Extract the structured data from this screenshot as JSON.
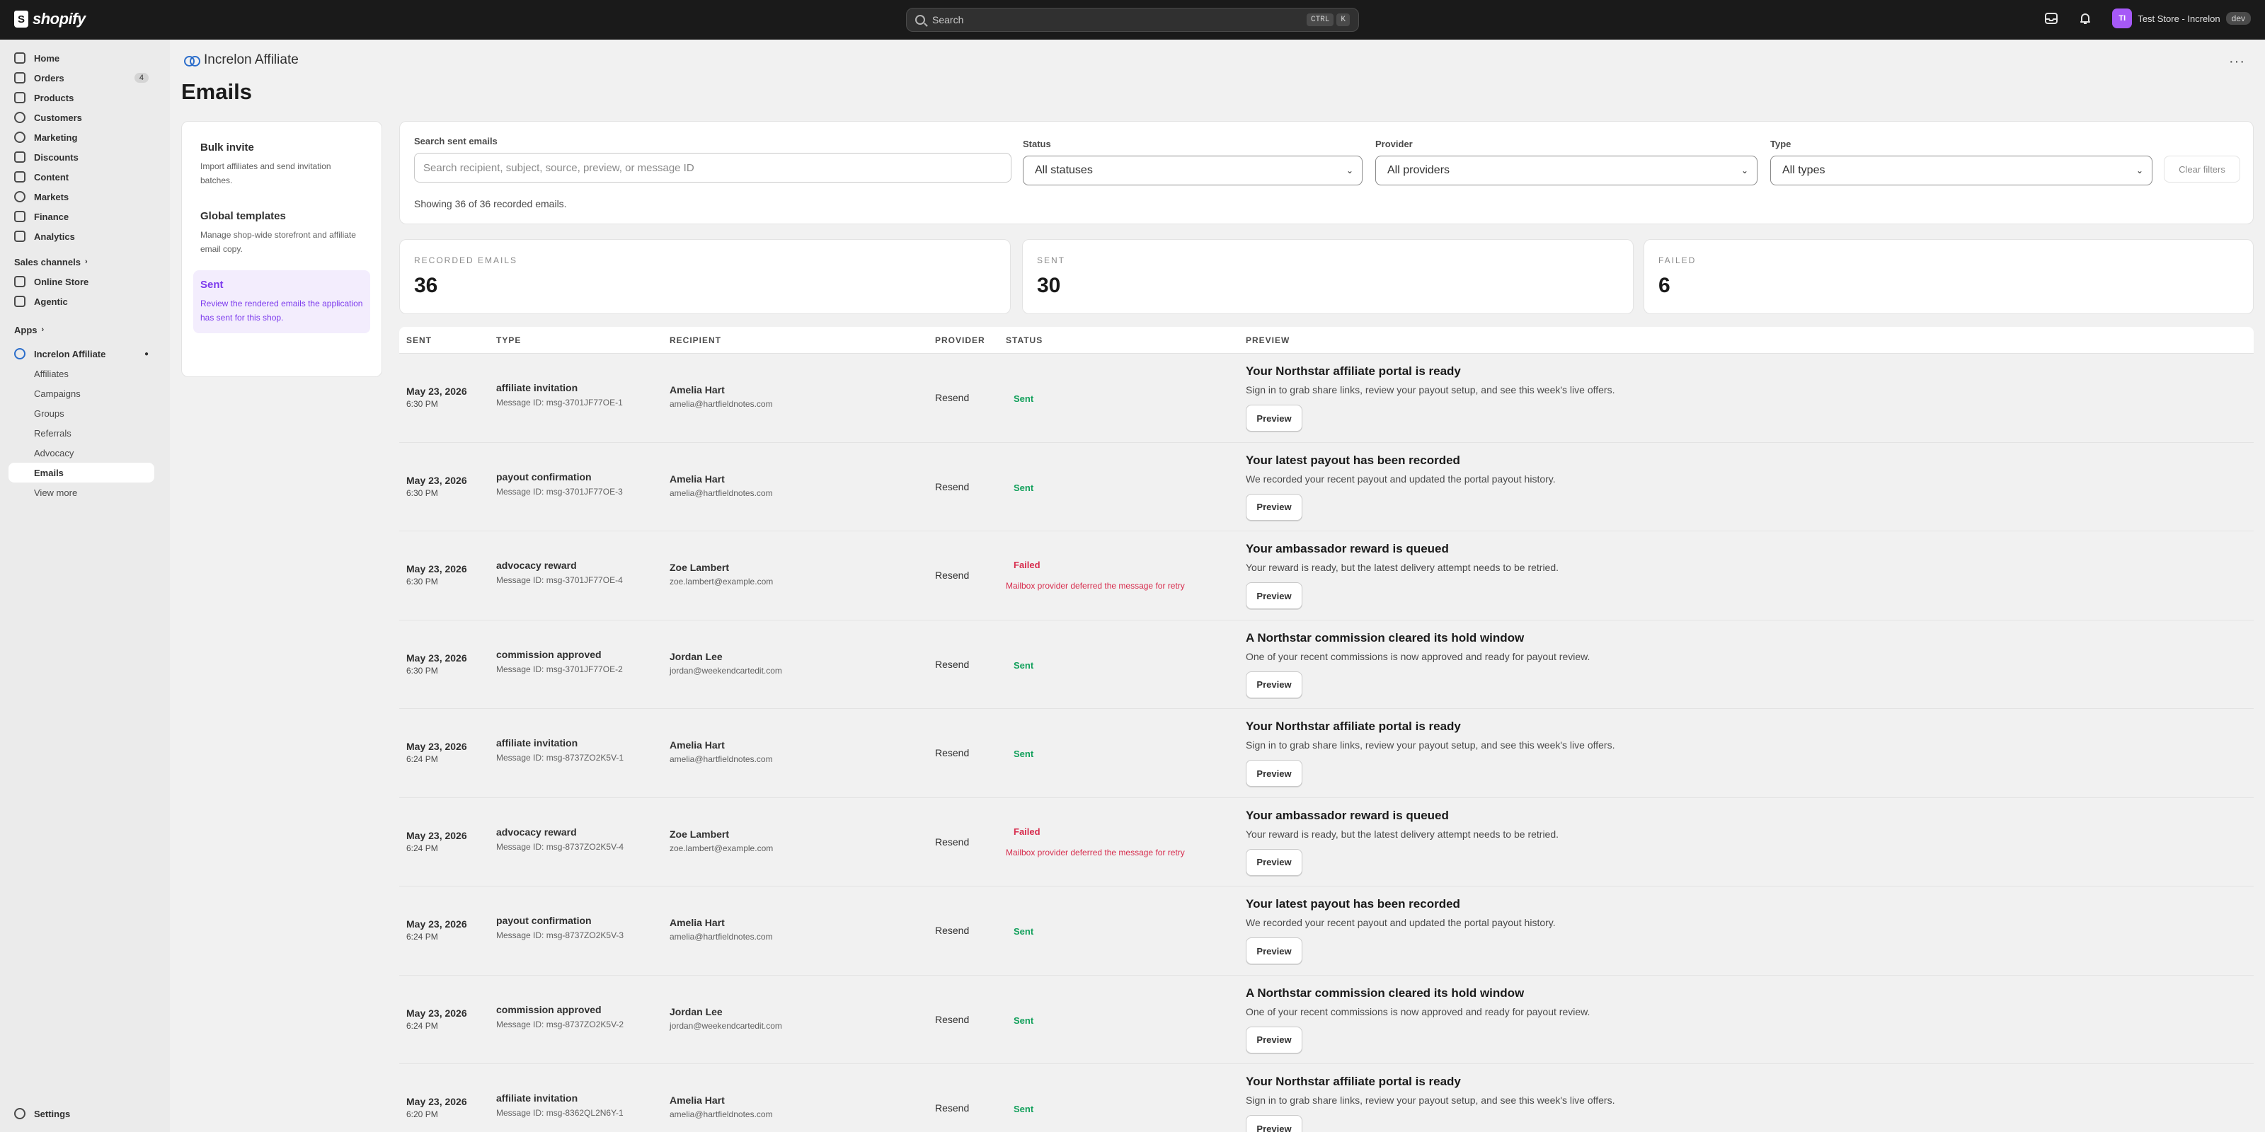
{
  "topbar": {
    "logo_text": "shopify",
    "search_placeholder": "Search",
    "search_kbd1": "CTRL",
    "search_kbd2": "K",
    "store_initials": "TI",
    "store_name": "Test Store - Increlon",
    "store_badge": "dev"
  },
  "sidebar": {
    "items": [
      {
        "label": "Home",
        "icon": "home-icon"
      },
      {
        "label": "Orders",
        "icon": "orders-icon",
        "badge": "4"
      },
      {
        "label": "Products",
        "icon": "products-icon"
      },
      {
        "label": "Customers",
        "icon": "customers-icon"
      },
      {
        "label": "Marketing",
        "icon": "marketing-icon"
      },
      {
        "label": "Discounts",
        "icon": "discounts-icon"
      },
      {
        "label": "Content",
        "icon": "content-icon"
      },
      {
        "label": "Markets",
        "icon": "markets-icon"
      },
      {
        "label": "Finance",
        "icon": "finance-icon"
      },
      {
        "label": "Analytics",
        "icon": "analytics-icon"
      }
    ],
    "sales_channels_label": "Sales channels",
    "sales_channels": [
      {
        "label": "Online Store"
      },
      {
        "label": "Agentic"
      }
    ],
    "apps_label": "Apps",
    "app_name": "Increlon Affiliate",
    "app_subitems": [
      "Affiliates",
      "Campaigns",
      "Groups",
      "Referrals",
      "Advocacy",
      "Emails",
      "View more"
    ],
    "active_subitem": "Emails",
    "settings_label": "Settings"
  },
  "header": {
    "breadcrumb": "Increlon Affiliate",
    "page_title": "Emails"
  },
  "left_menu": [
    {
      "title": "Bulk invite",
      "desc": "Import affiliates and send invitation batches."
    },
    {
      "title": "Global templates",
      "desc": "Manage shop-wide storefront and affiliate email copy."
    },
    {
      "title": "Sent",
      "desc": "Review the rendered emails the application has sent for this shop.",
      "active": true
    }
  ],
  "filters": {
    "search_label": "Search sent emails",
    "search_placeholder": "Search recipient, subject, source, preview, or message ID",
    "status_label": "Status",
    "status_value": "All statuses",
    "provider_label": "Provider",
    "provider_value": "All providers",
    "type_label": "Type",
    "type_value": "All types",
    "clear_label": "Clear filters",
    "showing_text": "Showing 36 of 36 recorded emails."
  },
  "stats": [
    {
      "label": "RECORDED EMAILS",
      "value": "36"
    },
    {
      "label": "SENT",
      "value": "30"
    },
    {
      "label": "FAILED",
      "value": "6"
    }
  ],
  "table": {
    "headers": [
      "SENT",
      "TYPE",
      "RECIPIENT",
      "PROVIDER",
      "STATUS",
      "PREVIEW"
    ],
    "preview_button": "Preview",
    "rows": [
      {
        "date": "May 23, 2026",
        "time": "6:30 PM",
        "type": "affiliate invitation",
        "msg": "Message ID: msg-3701JF77OE-1",
        "name": "Amelia Hart",
        "email": "amelia@hartfieldnotes.com",
        "provider": "Resend",
        "status": "Sent",
        "error": "",
        "pv_title": "Your Northstar affiliate portal is ready",
        "pv_desc": "Sign in to grab share links, review your payout setup, and see this week's live offers."
      },
      {
        "date": "May 23, 2026",
        "time": "6:30 PM",
        "type": "payout confirmation",
        "msg": "Message ID: msg-3701JF77OE-3",
        "name": "Amelia Hart",
        "email": "amelia@hartfieldnotes.com",
        "provider": "Resend",
        "status": "Sent",
        "error": "",
        "pv_title": "Your latest payout has been recorded",
        "pv_desc": "We recorded your recent payout and updated the portal payout history."
      },
      {
        "date": "May 23, 2026",
        "time": "6:30 PM",
        "type": "advocacy reward",
        "msg": "Message ID: msg-3701JF77OE-4",
        "name": "Zoe Lambert",
        "email": "zoe.lambert@example.com",
        "provider": "Resend",
        "status": "Failed",
        "error": "Mailbox provider deferred the message for retry",
        "pv_title": "Your ambassador reward is queued",
        "pv_desc": "Your reward is ready, but the latest delivery attempt needs to be retried."
      },
      {
        "date": "May 23, 2026",
        "time": "6:30 PM",
        "type": "commission approved",
        "msg": "Message ID: msg-3701JF77OE-2",
        "name": "Jordan Lee",
        "email": "jordan@weekendcartedit.com",
        "provider": "Resend",
        "status": "Sent",
        "error": "",
        "pv_title": "A Northstar commission cleared its hold window",
        "pv_desc": "One of your recent commissions is now approved and ready for payout review."
      },
      {
        "date": "May 23, 2026",
        "time": "6:24 PM",
        "type": "affiliate invitation",
        "msg": "Message ID: msg-8737ZO2K5V-1",
        "name": "Amelia Hart",
        "email": "amelia@hartfieldnotes.com",
        "provider": "Resend",
        "status": "Sent",
        "error": "",
        "pv_title": "Your Northstar affiliate portal is ready",
        "pv_desc": "Sign in to grab share links, review your payout setup, and see this week's live offers."
      },
      {
        "date": "May 23, 2026",
        "time": "6:24 PM",
        "type": "advocacy reward",
        "msg": "Message ID: msg-8737ZO2K5V-4",
        "name": "Zoe Lambert",
        "email": "zoe.lambert@example.com",
        "provider": "Resend",
        "status": "Failed",
        "error": "Mailbox provider deferred the message for retry",
        "pv_title": "Your ambassador reward is queued",
        "pv_desc": "Your reward is ready, but the latest delivery attempt needs to be retried."
      },
      {
        "date": "May 23, 2026",
        "time": "6:24 PM",
        "type": "payout confirmation",
        "msg": "Message ID: msg-8737ZO2K5V-3",
        "name": "Amelia Hart",
        "email": "amelia@hartfieldnotes.com",
        "provider": "Resend",
        "status": "Sent",
        "error": "",
        "pv_title": "Your latest payout has been recorded",
        "pv_desc": "We recorded your recent payout and updated the portal payout history."
      },
      {
        "date": "May 23, 2026",
        "time": "6:24 PM",
        "type": "commission approved",
        "msg": "Message ID: msg-8737ZO2K5V-2",
        "name": "Jordan Lee",
        "email": "jordan@weekendcartedit.com",
        "provider": "Resend",
        "status": "Sent",
        "error": "",
        "pv_title": "A Northstar commission cleared its hold window",
        "pv_desc": "One of your recent commissions is now approved and ready for payout review."
      },
      {
        "date": "May 23, 2026",
        "time": "6:20 PM",
        "type": "affiliate invitation",
        "msg": "Message ID: msg-8362QL2N6Y-1",
        "name": "Amelia Hart",
        "email": "amelia@hartfieldnotes.com",
        "provider": "Resend",
        "status": "Sent",
        "error": "",
        "pv_title": "Your Northstar affiliate portal is ready",
        "pv_desc": "Sign in to grab share links, review your payout setup, and see this week's live offers."
      }
    ]
  },
  "colors": {
    "sent": "#12a05b",
    "failed": "#d72c4d",
    "accent": "#7c3aed"
  }
}
